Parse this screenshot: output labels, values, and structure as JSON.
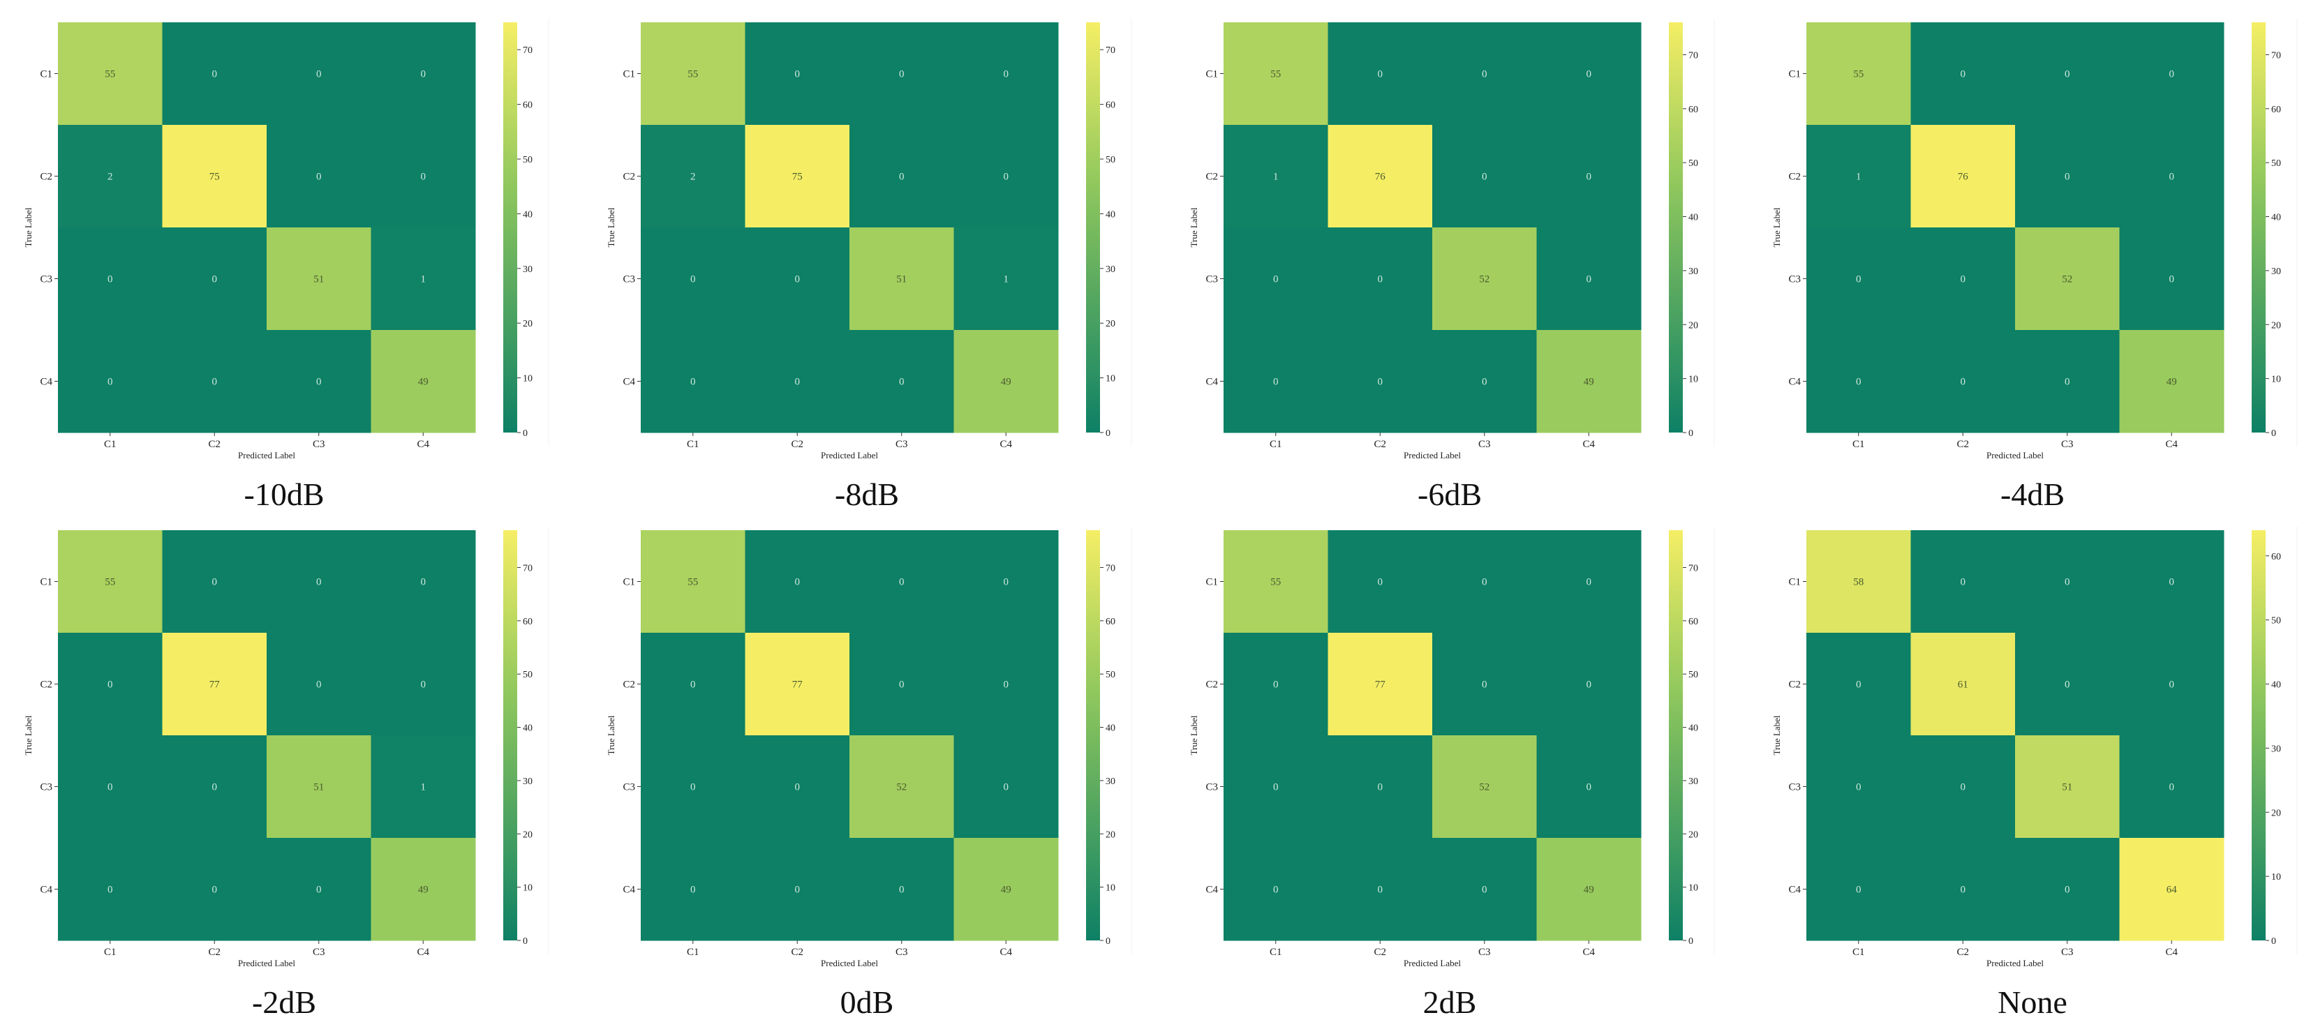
{
  "chart_data": [
    {
      "type": "heatmap",
      "caption": "-10dB",
      "xlabel": "Predicted Label",
      "ylabel": "True Label",
      "x_categories": [
        "C1",
        "C2",
        "C3",
        "C4"
      ],
      "y_categories": [
        "C1",
        "C2",
        "C3",
        "C4"
      ],
      "matrix": [
        [
          55,
          0,
          0,
          0
        ],
        [
          2,
          75,
          0,
          0
        ],
        [
          0,
          0,
          51,
          1
        ],
        [
          0,
          0,
          0,
          49
        ]
      ],
      "colorbar": {
        "ticks": [
          0,
          10,
          20,
          30,
          40,
          50,
          60,
          70
        ],
        "range": [
          0,
          75
        ]
      }
    },
    {
      "type": "heatmap",
      "caption": "-8dB",
      "xlabel": "Predicted Label",
      "ylabel": "True Label",
      "x_categories": [
        "C1",
        "C2",
        "C3",
        "C4"
      ],
      "y_categories": [
        "C1",
        "C2",
        "C3",
        "C4"
      ],
      "matrix": [
        [
          55,
          0,
          0,
          0
        ],
        [
          2,
          75,
          0,
          0
        ],
        [
          0,
          0,
          51,
          1
        ],
        [
          0,
          0,
          0,
          49
        ]
      ],
      "colorbar": {
        "ticks": [
          0,
          10,
          20,
          30,
          40,
          50,
          60,
          70
        ],
        "range": [
          0,
          75
        ]
      }
    },
    {
      "type": "heatmap",
      "caption": "-6dB",
      "xlabel": "Predicted Label",
      "ylabel": "True Label",
      "x_categories": [
        "C1",
        "C2",
        "C3",
        "C4"
      ],
      "y_categories": [
        "C1",
        "C2",
        "C3",
        "C4"
      ],
      "matrix": [
        [
          55,
          0,
          0,
          0
        ],
        [
          1,
          76,
          0,
          0
        ],
        [
          0,
          0,
          52,
          0
        ],
        [
          0,
          0,
          0,
          49
        ]
      ],
      "colorbar": {
        "ticks": [
          0,
          10,
          20,
          30,
          40,
          50,
          60,
          70
        ],
        "range": [
          0,
          76
        ]
      }
    },
    {
      "type": "heatmap",
      "caption": "-4dB",
      "xlabel": "Predicted Label",
      "ylabel": "True Label",
      "x_categories": [
        "C1",
        "C2",
        "C3",
        "C4"
      ],
      "y_categories": [
        "C1",
        "C2",
        "C3",
        "C4"
      ],
      "matrix": [
        [
          55,
          0,
          0,
          0
        ],
        [
          1,
          76,
          0,
          0
        ],
        [
          0,
          0,
          52,
          0
        ],
        [
          0,
          0,
          0,
          49
        ]
      ],
      "colorbar": {
        "ticks": [
          0,
          10,
          20,
          30,
          40,
          50,
          60,
          70
        ],
        "range": [
          0,
          76
        ]
      }
    },
    {
      "type": "heatmap",
      "caption": "-2dB",
      "xlabel": "Predicted Label",
      "ylabel": "True Label",
      "x_categories": [
        "C1",
        "C2",
        "C3",
        "C4"
      ],
      "y_categories": [
        "C1",
        "C2",
        "C3",
        "C4"
      ],
      "matrix": [
        [
          55,
          0,
          0,
          0
        ],
        [
          0,
          77,
          0,
          0
        ],
        [
          0,
          0,
          51,
          1
        ],
        [
          0,
          0,
          0,
          49
        ]
      ],
      "colorbar": {
        "ticks": [
          0,
          10,
          20,
          30,
          40,
          50,
          60,
          70
        ],
        "range": [
          0,
          77
        ]
      }
    },
    {
      "type": "heatmap",
      "caption": "0dB",
      "xlabel": "Predicted Label",
      "ylabel": "True Label",
      "x_categories": [
        "C1",
        "C2",
        "C3",
        "C4"
      ],
      "y_categories": [
        "C1",
        "C2",
        "C3",
        "C4"
      ],
      "matrix": [
        [
          55,
          0,
          0,
          0
        ],
        [
          0,
          77,
          0,
          0
        ],
        [
          0,
          0,
          52,
          0
        ],
        [
          0,
          0,
          0,
          49
        ]
      ],
      "colorbar": {
        "ticks": [
          0,
          10,
          20,
          30,
          40,
          50,
          60,
          70
        ],
        "range": [
          0,
          77
        ]
      }
    },
    {
      "type": "heatmap",
      "caption": "2dB",
      "xlabel": "Predicted Label",
      "ylabel": "True Label",
      "x_categories": [
        "C1",
        "C2",
        "C3",
        "C4"
      ],
      "y_categories": [
        "C1",
        "C2",
        "C3",
        "C4"
      ],
      "matrix": [
        [
          55,
          0,
          0,
          0
        ],
        [
          0,
          77,
          0,
          0
        ],
        [
          0,
          0,
          52,
          0
        ],
        [
          0,
          0,
          0,
          49
        ]
      ],
      "colorbar": {
        "ticks": [
          0,
          10,
          20,
          30,
          40,
          50,
          60,
          70
        ],
        "range": [
          0,
          77
        ]
      }
    },
    {
      "type": "heatmap",
      "caption": "None",
      "xlabel": "Predicted Label",
      "ylabel": "True Label",
      "x_categories": [
        "C1",
        "C2",
        "C3",
        "C4"
      ],
      "y_categories": [
        "C1",
        "C2",
        "C3",
        "C4"
      ],
      "matrix": [
        [
          58,
          0,
          0,
          0
        ],
        [
          0,
          61,
          0,
          0
        ],
        [
          0,
          0,
          51,
          0
        ],
        [
          0,
          0,
          0,
          64
        ]
      ],
      "colorbar": {
        "ticks": [
          0,
          10,
          20,
          30,
          40,
          50,
          60
        ],
        "range": [
          0,
          64
        ]
      }
    }
  ],
  "colors": {
    "low": "#0d8065",
    "mid": "#8fc75d",
    "high": "#f5ee65",
    "text_on_dark": "#cfe9df",
    "text_on_light": "#4a5a2e"
  }
}
